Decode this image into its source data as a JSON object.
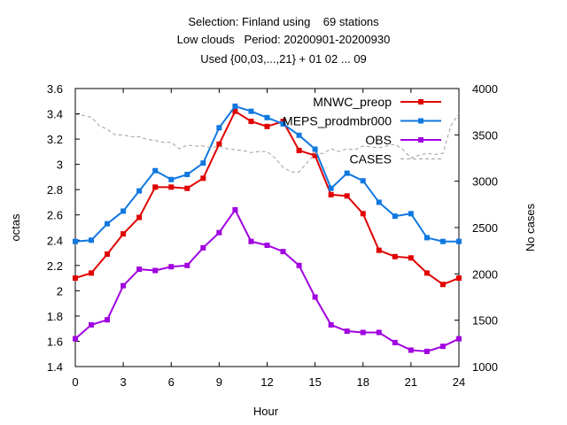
{
  "title_lines": [
    "Selection: Finland using    69 stations",
    "Low clouds   Period: 20200901-20200930",
    "Used {00,03,...,21} + 01 02 ... 09"
  ],
  "chart_data": {
    "type": "line",
    "title": "Selection: Finland using    69 stations / Low clouds   Period: 20200901-20200930 / Used {00,03,...,21} + 01 02 ... 09",
    "xlabel": "Hour",
    "ylabel": "octas",
    "y2label": "No cases",
    "xlim": [
      0,
      24
    ],
    "ylim": [
      1.4,
      3.6
    ],
    "y2lim": [
      1000,
      4000
    ],
    "xticks": [
      "0",
      "3",
      "6",
      "9",
      "12",
      "15",
      "18",
      "21",
      "24"
    ],
    "yticks": [
      "1.4",
      "1.6",
      "1.8",
      "2",
      "2.2",
      "2.4",
      "2.6",
      "2.8",
      "3",
      "3.2",
      "3.4",
      "3.6"
    ],
    "y2ticks": [
      "1000",
      "1500",
      "2000",
      "2500",
      "3000",
      "3500",
      "4000"
    ],
    "legend_position": "top-right",
    "grid": false,
    "x": [
      0,
      1,
      2,
      3,
      4,
      5,
      6,
      7,
      8,
      9,
      10,
      11,
      12,
      13,
      14,
      15,
      16,
      17,
      18,
      19,
      20,
      21,
      22,
      23,
      24
    ],
    "series": [
      {
        "name": "MNWC_preop",
        "color": "#e00000",
        "marker": "square",
        "axis": "y",
        "values": [
          2.1,
          2.14,
          2.29,
          2.45,
          2.58,
          2.82,
          2.82,
          2.81,
          2.89,
          3.16,
          3.42,
          3.34,
          3.3,
          3.34,
          3.11,
          3.07,
          2.76,
          2.75,
          2.61,
          2.32,
          2.27,
          2.26,
          2.14,
          2.05,
          2.1
        ]
      },
      {
        "name": "MEPS_prodmbr000",
        "color": "#1078e0",
        "marker": "square",
        "axis": "y",
        "values": [
          2.39,
          2.4,
          2.53,
          2.63,
          2.79,
          2.95,
          2.88,
          2.92,
          3.01,
          3.29,
          3.46,
          3.42,
          3.37,
          3.32,
          3.23,
          3.12,
          2.81,
          2.93,
          2.87,
          2.7,
          2.59,
          2.61,
          2.42,
          2.39,
          2.39
        ]
      },
      {
        "name": "OBS",
        "color": "#a000e0",
        "marker": "square",
        "axis": "y",
        "values": [
          1.62,
          1.73,
          1.77,
          2.04,
          2.17,
          2.16,
          2.19,
          2.2,
          2.34,
          2.46,
          2.64,
          2.39,
          2.36,
          2.31,
          2.2,
          1.95,
          1.73,
          1.68,
          1.67,
          1.67,
          1.59,
          1.53,
          1.52,
          1.56,
          1.62
        ]
      },
      {
        "name": "CASES",
        "color": "#a0a0a0",
        "marker": "none",
        "dash": true,
        "axis": "y2",
        "x": [
          0,
          0.5,
          1,
          1.5,
          2,
          2.5,
          3,
          3.5,
          4,
          4.5,
          5,
          5.5,
          6,
          6.5,
          7,
          7.5,
          8,
          8.5,
          9,
          9.5,
          10,
          10.5,
          11,
          11.5,
          12,
          12.5,
          13,
          13.5,
          14,
          14.5,
          15,
          15.5,
          16,
          16.5,
          17,
          17.5,
          18,
          18.5,
          19,
          19.5,
          20,
          20.5,
          21,
          21.5,
          22,
          22.5,
          23,
          23.5,
          24
        ],
        "values": [
          3720,
          3710,
          3690,
          3600,
          3560,
          3500,
          3500,
          3480,
          3480,
          3450,
          3440,
          3420,
          3420,
          3350,
          3390,
          3380,
          3380,
          3360,
          3380,
          3350,
          3340,
          3330,
          3310,
          3320,
          3320,
          3250,
          3150,
          3100,
          3100,
          3200,
          3300,
          3300,
          3350,
          3320,
          3350,
          3340,
          3380,
          3370,
          3360,
          3380,
          3400,
          3340,
          3250,
          3280,
          3300,
          3290,
          3300,
          3600,
          3730
        ]
      }
    ]
  }
}
